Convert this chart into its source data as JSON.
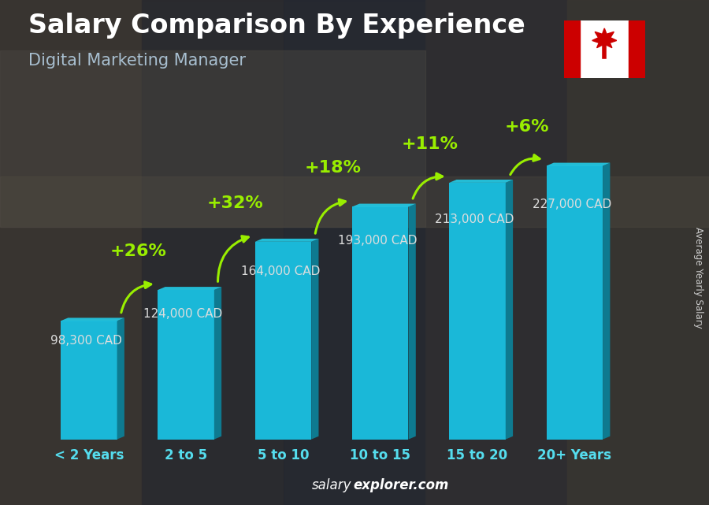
{
  "title": "Salary Comparison By Experience",
  "subtitle": "Digital Marketing Manager",
  "categories": [
    "< 2 Years",
    "2 to 5",
    "5 to 10",
    "10 to 15",
    "15 to 20",
    "20+ Years"
  ],
  "values": [
    98300,
    124000,
    164000,
    193000,
    213000,
    227000
  ],
  "value_labels": [
    "98,300 CAD",
    "124,000 CAD",
    "164,000 CAD",
    "193,000 CAD",
    "213,000 CAD",
    "227,000 CAD"
  ],
  "pct_changes": [
    "+26%",
    "+32%",
    "+18%",
    "+11%",
    "+6%"
  ],
  "bar_color_face": "#1ab8d8",
  "bar_color_right": "#0e7a90",
  "bar_color_top": "#22cce8",
  "bg_color": "#2e3236",
  "title_color": "#ffffff",
  "subtitle_color": "#a8bfd0",
  "tick_color": "#55ddee",
  "pct_color": "#99ee00",
  "value_label_color": "#dddddd",
  "ylabel": "Average Yearly Salary",
  "ylim": [
    0,
    285000
  ],
  "bar_width": 0.58,
  "title_fontsize": 24,
  "subtitle_fontsize": 15,
  "tick_fontsize": 12,
  "value_label_fontsize": 11,
  "pct_fontsize": 16
}
